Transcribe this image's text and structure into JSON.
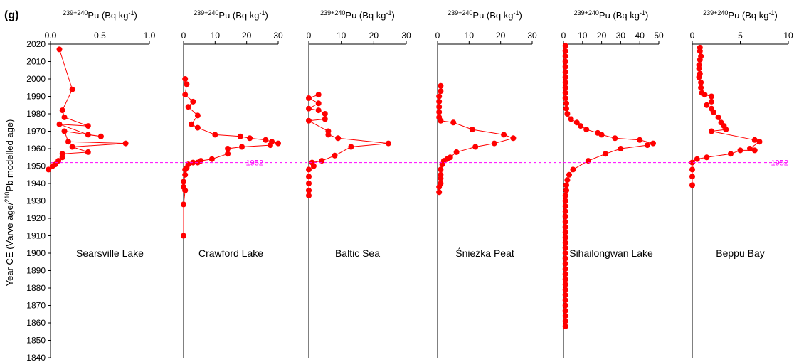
{
  "panel_label": "(g)",
  "chart_data": {
    "type": "scatter",
    "panel_label": "(g)",
    "ylabel_parts": [
      "Year CE (Varve age/",
      "210",
      "Pb modelled age)"
    ],
    "ylim": [
      1840,
      2020
    ],
    "y_ticks": [
      1840,
      1850,
      1860,
      1870,
      1880,
      1890,
      1900,
      1910,
      1920,
      1930,
      1940,
      1950,
      1960,
      1970,
      1980,
      1990,
      2000,
      2010,
      2020
    ],
    "reference_line": {
      "year": 1952,
      "label": "1952",
      "color": "#ff00ff"
    },
    "series_color": "#ff0000",
    "panels": [
      {
        "xlabel": {
          "sup": "239+240",
          "main": "Pu  (Bq kg",
          "sup2": "-1",
          "end": ")"
        },
        "site": "Searsville Lake",
        "xlim": [
          0,
          1.0
        ],
        "xticks": [
          0.0,
          0.5,
          1.0
        ],
        "xtick_labels": [
          "0.0",
          "0.5",
          "1.0"
        ],
        "points": [
          [
            0.09,
            2017
          ],
          [
            0.22,
            1994
          ],
          [
            0.12,
            1982
          ],
          [
            0.14,
            1978
          ],
          [
            0.38,
            1973
          ],
          [
            0.09,
            1974
          ],
          [
            0.38,
            1968
          ],
          [
            0.51,
            1967
          ],
          [
            0.14,
            1970
          ],
          [
            0.18,
            1964
          ],
          [
            0.76,
            1963
          ],
          [
            0.22,
            1961
          ],
          [
            0.38,
            1958
          ],
          [
            0.12,
            1957
          ],
          [
            0.12,
            1955
          ],
          [
            0.08,
            1953
          ],
          [
            0.05,
            1951
          ],
          [
            0.02,
            1950
          ],
          [
            -0.02,
            1948
          ]
        ]
      },
      {
        "xlabel": {
          "sup": "239+240",
          "main": "Pu  (Bq kg",
          "sup2": "-1",
          "end": ")"
        },
        "site": "Crawford Lake",
        "xlim": [
          0,
          30
        ],
        "xticks": [
          0,
          10,
          20,
          30
        ],
        "xtick_labels": [
          "0",
          "10",
          "20",
          "30"
        ],
        "points": [
          [
            0.5,
            2000
          ],
          [
            1.0,
            1997
          ],
          [
            0.5,
            1991
          ],
          [
            3.0,
            1987
          ],
          [
            1.5,
            1984
          ],
          [
            4.5,
            1979
          ],
          [
            2.5,
            1974
          ],
          [
            4.5,
            1972
          ],
          [
            10,
            1968
          ],
          [
            18,
            1967
          ],
          [
            21,
            1966
          ],
          [
            26,
            1965
          ],
          [
            30,
            1963
          ],
          [
            28,
            1964
          ],
          [
            27.5,
            1962
          ],
          [
            18.5,
            1961
          ],
          [
            14,
            1960
          ],
          [
            14,
            1957
          ],
          [
            9,
            1954
          ],
          [
            5.5,
            1953
          ],
          [
            4.5,
            1952
          ],
          [
            3,
            1952
          ],
          [
            1.5,
            1951
          ],
          [
            1.0,
            1949
          ],
          [
            0.5,
            1948
          ],
          [
            0.5,
            1945
          ],
          [
            0,
            1941
          ],
          [
            0,
            1938
          ],
          [
            0.5,
            1936
          ],
          [
            0,
            1928
          ],
          [
            0,
            1910
          ]
        ]
      },
      {
        "xlabel": {
          "sup": "239+240",
          "main": "Pu  (Bq kg",
          "sup2": "-1",
          "end": ")"
        },
        "site": "Baltic Sea",
        "xlim": [
          0,
          30
        ],
        "xticks": [
          0,
          10,
          20,
          30
        ],
        "xtick_labels": [
          "0",
          "10",
          "20",
          "30"
        ],
        "points": [
          [
            3,
            1991
          ],
          [
            0,
            1989
          ],
          [
            3,
            1986
          ],
          [
            0,
            1983
          ],
          [
            3,
            1982
          ],
          [
            5,
            1980
          ],
          [
            5,
            1977
          ],
          [
            0,
            1976
          ],
          [
            6,
            1970
          ],
          [
            6,
            1968
          ],
          [
            9,
            1966
          ],
          [
            24.5,
            1963
          ],
          [
            13,
            1961
          ],
          [
            8,
            1956
          ],
          [
            4,
            1953
          ],
          [
            1,
            1952
          ],
          [
            1.5,
            1950
          ],
          [
            0,
            1948
          ],
          [
            0,
            1944
          ],
          [
            0,
            1940
          ],
          [
            0,
            1936
          ],
          [
            0,
            1933
          ]
        ]
      },
      {
        "xlabel": {
          "sup": "239+240",
          "main": "Pu  (Bq kg",
          "sup2": "-1",
          "end": ")"
        },
        "site": "Śnieżka Peat",
        "xlim": [
          0,
          30
        ],
        "xticks": [
          0,
          10,
          20,
          30
        ],
        "xtick_labels": [
          "0",
          "10",
          "20",
          "30"
        ],
        "points": [
          [
            1,
            1996
          ],
          [
            1,
            1993
          ],
          [
            0.5,
            1990
          ],
          [
            0.5,
            1987
          ],
          [
            0.5,
            1984
          ],
          [
            0.5,
            1981
          ],
          [
            0.5,
            1978
          ],
          [
            1,
            1976
          ],
          [
            5,
            1975
          ],
          [
            11,
            1971
          ],
          [
            21,
            1968
          ],
          [
            24,
            1966
          ],
          [
            18,
            1963
          ],
          [
            12,
            1961
          ],
          [
            6,
            1958
          ],
          [
            4,
            1955
          ],
          [
            3,
            1954
          ],
          [
            2,
            1953
          ],
          [
            1.5,
            1951
          ],
          [
            1,
            1948
          ],
          [
            1,
            1945
          ],
          [
            1,
            1943
          ],
          [
            1,
            1940
          ],
          [
            0.5,
            1938
          ],
          [
            0.5,
            1935
          ]
        ]
      },
      {
        "xlabel": {
          "sup": "239+240",
          "main": "Pu  (Bq kg",
          "sup2": "-1",
          "end": ")"
        },
        "site": "Sihailongwan Lake",
        "xlim": [
          0,
          50
        ],
        "xticks": [
          0,
          10,
          20,
          30,
          40,
          50
        ],
        "xtick_labels": [
          "0",
          "10",
          "20",
          "30",
          "40",
          "50"
        ],
        "points": [
          [
            1,
            2019
          ],
          [
            1,
            2016
          ],
          [
            1,
            2013
          ],
          [
            1,
            2010
          ],
          [
            1,
            2007
          ],
          [
            1,
            2004
          ],
          [
            1,
            2001
          ],
          [
            1,
            1998
          ],
          [
            1,
            1995
          ],
          [
            1,
            1992
          ],
          [
            1,
            1989
          ],
          [
            1.5,
            1986
          ],
          [
            1.5,
            1983
          ],
          [
            2,
            1980
          ],
          [
            4,
            1977
          ],
          [
            7,
            1975
          ],
          [
            9,
            1973
          ],
          [
            12,
            1971
          ],
          [
            18,
            1969
          ],
          [
            20,
            1968
          ],
          [
            27,
            1966
          ],
          [
            40,
            1965
          ],
          [
            47,
            1963
          ],
          [
            44,
            1962
          ],
          [
            30,
            1960
          ],
          [
            22,
            1957
          ],
          [
            13,
            1953
          ],
          [
            5,
            1948
          ],
          [
            3,
            1945
          ],
          [
            2,
            1942
          ],
          [
            1.5,
            1939
          ],
          [
            1.5,
            1936
          ],
          [
            1,
            1933
          ],
          [
            1,
            1930
          ],
          [
            1,
            1927
          ],
          [
            1,
            1924
          ],
          [
            1,
            1921
          ],
          [
            1,
            1918
          ],
          [
            1,
            1915
          ],
          [
            1,
            1912
          ],
          [
            1,
            1909
          ],
          [
            1,
            1906
          ],
          [
            1,
            1903
          ],
          [
            1,
            1900
          ],
          [
            1,
            1897
          ],
          [
            1,
            1894
          ],
          [
            1,
            1891
          ],
          [
            1,
            1888
          ],
          [
            1,
            1885
          ],
          [
            1,
            1882
          ],
          [
            1,
            1879
          ],
          [
            1,
            1876
          ],
          [
            1,
            1873
          ],
          [
            1,
            1870
          ],
          [
            1,
            1867
          ],
          [
            1,
            1864
          ],
          [
            1,
            1861
          ],
          [
            1,
            1858
          ]
        ]
      },
      {
        "xlabel": {
          "sup": "239+240",
          "main": "Pu  (Bq kg",
          "sup2": "-1",
          "end": ")"
        },
        "site": "Beppu Bay",
        "xlim": [
          0,
          10
        ],
        "xticks": [
          0,
          5,
          10
        ],
        "xtick_labels": [
          "0",
          "5",
          "10"
        ],
        "points": [
          [
            0.8,
            2018
          ],
          [
            0.8,
            2016
          ],
          [
            0.9,
            2013
          ],
          [
            0.8,
            2011
          ],
          [
            0.7,
            2008
          ],
          [
            0.7,
            2006
          ],
          [
            0.8,
            2003
          ],
          [
            0.7,
            2001
          ],
          [
            0.9,
            1998
          ],
          [
            0.9,
            1995
          ],
          [
            1,
            1992
          ],
          [
            1.3,
            1991
          ],
          [
            2,
            1990
          ],
          [
            2,
            1987
          ],
          [
            1.5,
            1985
          ],
          [
            2,
            1983
          ],
          [
            2.2,
            1981
          ],
          [
            2.7,
            1978
          ],
          [
            3,
            1975
          ],
          [
            3.3,
            1973
          ],
          [
            3.5,
            1971
          ],
          [
            2,
            1970
          ],
          [
            6.5,
            1965
          ],
          [
            7,
            1964
          ],
          [
            6,
            1960
          ],
          [
            6.5,
            1959
          ],
          [
            5,
            1959
          ],
          [
            4,
            1957
          ],
          [
            1.5,
            1955
          ],
          [
            0.5,
            1954
          ],
          [
            0,
            1952
          ],
          [
            0,
            1948
          ],
          [
            0,
            1944
          ],
          [
            0,
            1939
          ]
        ]
      }
    ]
  }
}
